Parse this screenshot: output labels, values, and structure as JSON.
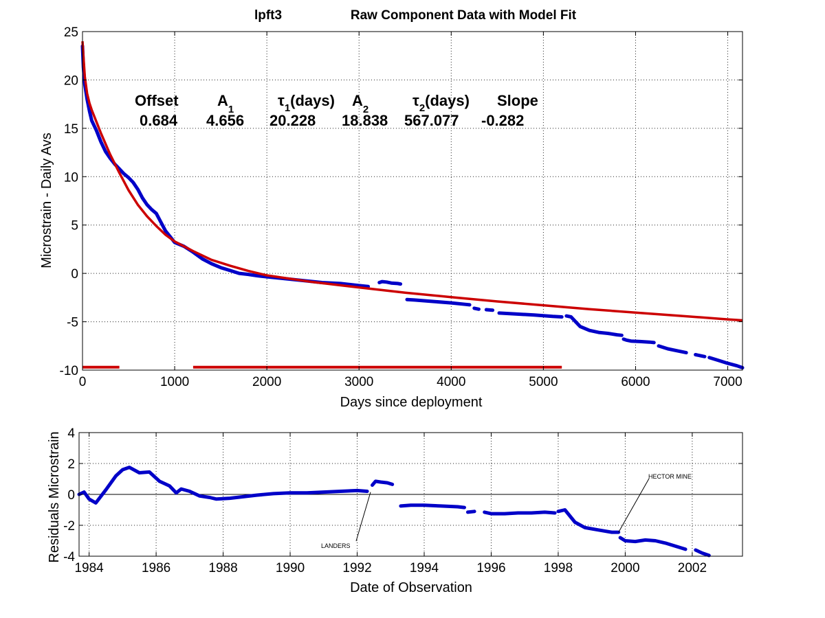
{
  "figure": {
    "title_left": "lpft3",
    "title_right": "Raw Component Data with Model Fit"
  },
  "top_axes": {
    "xlabel": "Days since deployment",
    "ylabel": "Microstrain - Daily Avs",
    "xlim": [
      0,
      7160
    ],
    "ylim": [
      -10,
      25
    ],
    "xticks": [
      0,
      1000,
      2000,
      3000,
      4000,
      5000,
      6000,
      7000
    ],
    "yticks": [
      -10,
      -5,
      0,
      5,
      10,
      15,
      20,
      25
    ],
    "grid": true
  },
  "fit_params": {
    "offset_label": "Offset",
    "a1_label": "A",
    "a1_sub": "1",
    "tau1_sym": "τ",
    "tau1_sub": "1",
    "tau1_unit": "(days)",
    "a2_label": "A",
    "a2_sub": "2",
    "tau2_sym": "τ",
    "tau2_sub": "2",
    "tau2_unit": "(days)",
    "slope_label": "Slope",
    "offset_value": "0.684",
    "a1_value": "4.656",
    "tau1_value": "20.228",
    "a2_value": "18.838",
    "tau2_value": "567.077",
    "slope_value": "-0.282"
  },
  "bottom_axes": {
    "xlabel": "Date of Observation",
    "ylabel": "Residuals Microstrain",
    "xlim": [
      1983.7,
      2003.5
    ],
    "ylim": [
      -4,
      4
    ],
    "xticks": [
      1984,
      1986,
      1988,
      1990,
      1992,
      1994,
      1996,
      1998,
      2000,
      2002
    ],
    "yticks": [
      -4,
      -2,
      0,
      2,
      4
    ],
    "grid": true,
    "zero_line": true
  },
  "annotations": [
    {
      "text": "LANDERS",
      "x": 1992.4,
      "y": 0.15
    },
    {
      "text": "HECTOR MINE",
      "x": 1999.8,
      "y": -2.45
    }
  ],
  "chart_data": [
    {
      "type": "line",
      "title": "Raw Component Data with Model Fit",
      "xlabel": "Days since deployment",
      "ylabel": "Microstrain - Daily Avs",
      "xlim": [
        0,
        7160
      ],
      "ylim": [
        -10,
        25
      ],
      "grid": true,
      "colors": {
        "data": "#0000c8",
        "fit": "#cc0000"
      },
      "series": [
        {
          "style": "points",
          "color": "#0000c8",
          "segments": [
            {
              "x": [
                0,
                10,
                25,
                50,
                75,
                100,
                150,
                200,
                250,
                300,
                350,
                400,
                450,
                500,
                550,
                600,
                650,
                700,
                750,
                800,
                850,
                900,
                950,
                1000,
                1100,
                1200,
                1300,
                1400,
                1500,
                1600,
                1700,
                1800,
                1900,
                2000,
                2200,
                2400,
                2600,
                2800,
                3000,
                3100
              ],
              "y": [
                23.5,
                21.3,
                19.5,
                18.0,
                16.8,
                15.8,
                14.8,
                13.6,
                12.6,
                11.9,
                11.3,
                10.8,
                10.3,
                9.9,
                9.4,
                8.7,
                7.8,
                7.1,
                6.6,
                6.2,
                5.3,
                4.4,
                3.8,
                3.2,
                2.8,
                2.2,
                1.5,
                1.0,
                0.6,
                0.3,
                0.0,
                -0.1,
                -0.25,
                -0.35,
                -0.55,
                -0.75,
                -0.95,
                -1.05,
                -1.25,
                -1.35
              ]
            },
            {
              "x": [
                3220,
                3250,
                3300,
                3350,
                3420,
                3450
              ],
              "y": [
                -0.95,
                -0.85,
                -0.9,
                -1.0,
                -1.05,
                -1.1
              ]
            },
            {
              "x": [
                3520,
                3600,
                3800,
                4000,
                4150,
                4200
              ],
              "y": [
                -2.7,
                -2.75,
                -2.9,
                -3.05,
                -3.2,
                -3.25
              ]
            },
            {
              "x": [
                4250,
                4300
              ],
              "y": [
                -3.6,
                -3.7
              ]
            },
            {
              "x": [
                4380,
                4450
              ],
              "y": [
                -3.75,
                -3.8
              ]
            },
            {
              "x": [
                4520,
                4700,
                4900,
                5100,
                5200
              ],
              "y": [
                -4.1,
                -4.2,
                -4.3,
                -4.45,
                -4.5
              ]
            },
            {
              "x": [
                5250,
                5300,
                5350,
                5400,
                5500,
                5600,
                5700,
                5800,
                5850
              ],
              "y": [
                -4.4,
                -4.5,
                -5.0,
                -5.5,
                -5.9,
                -6.1,
                -6.2,
                -6.35,
                -6.4
              ]
            },
            {
              "x": [
                5870,
                5900,
                5950,
                6050,
                6150,
                6200
              ],
              "y": [
                -6.8,
                -6.9,
                -7.0,
                -7.05,
                -7.1,
                -7.15
              ]
            },
            {
              "x": [
                6250,
                6350,
                6450,
                6550
              ],
              "y": [
                -7.5,
                -7.8,
                -8.0,
                -8.2
              ]
            },
            {
              "x": [
                6650,
                6750
              ],
              "y": [
                -8.4,
                -8.6
              ]
            },
            {
              "x": [
                6800,
                6900,
                7000,
                7100,
                7160
              ],
              "y": [
                -8.7,
                -9.0,
                -9.3,
                -9.55,
                -9.75
              ]
            }
          ]
        },
        {
          "style": "line",
          "color": "#cc0000",
          "x": [
            0,
            10,
            25,
            50,
            75,
            100,
            150,
            200,
            300,
            400,
            500,
            600,
            700,
            800,
            900,
            1000,
            1200,
            1400,
            1600,
            1800,
            2000,
            2500,
            3000,
            3500,
            4000,
            4500,
            5000,
            5500,
            6000,
            6500,
            7000,
            7160
          ],
          "y": [
            24.0,
            22.5,
            20.3,
            18.6,
            17.6,
            16.9,
            15.7,
            14.5,
            12.3,
            10.4,
            8.6,
            7.1,
            5.9,
            4.9,
            4.0,
            3.3,
            2.3,
            1.4,
            0.8,
            0.25,
            -0.2,
            -0.9,
            -1.45,
            -2.0,
            -2.45,
            -2.9,
            -3.3,
            -3.7,
            -4.05,
            -4.4,
            -4.75,
            -4.85
          ]
        },
        {
          "style": "bar",
          "color": "#cc0000",
          "x": [
            0,
            400
          ],
          "y": [
            -9.7,
            -9.7
          ]
        },
        {
          "style": "bar",
          "color": "#cc0000",
          "x": [
            1200,
            5200
          ],
          "y": [
            -9.7,
            -9.7
          ]
        }
      ]
    },
    {
      "type": "line",
      "xlabel": "Date of Observation",
      "ylabel": "Residuals Microstrain",
      "xlim": [
        1983.7,
        2003.5
      ],
      "ylim": [
        -4,
        4
      ],
      "grid": true,
      "series": [
        {
          "style": "points",
          "color": "#0000c8",
          "segments": [
            {
              "x": [
                1983.7,
                1983.85,
                1984.0,
                1984.2,
                1984.5,
                1984.8,
                1985.0,
                1985.2,
                1985.5,
                1985.8,
                1986.1,
                1986.4,
                1986.6,
                1986.75,
                1987.0,
                1987.3,
                1987.6,
                1987.8,
                1988.2,
                1988.6,
                1989.0,
                1989.5,
                1990.0,
                1990.5,
                1991.0,
                1991.5,
                1992.0,
                1992.3
              ],
              "y": [
                0.0,
                0.15,
                -0.3,
                -0.55,
                0.3,
                1.2,
                1.6,
                1.75,
                1.4,
                1.45,
                0.85,
                0.55,
                0.1,
                0.35,
                0.2,
                -0.1,
                -0.2,
                -0.3,
                -0.25,
                -0.15,
                -0.05,
                0.05,
                0.1,
                0.1,
                0.15,
                0.2,
                0.25,
                0.2
              ]
            },
            {
              "x": [
                1992.45,
                1992.55,
                1992.7,
                1992.9,
                1993.05
              ],
              "y": [
                0.6,
                0.85,
                0.8,
                0.75,
                0.65
              ]
            },
            {
              "x": [
                1993.3,
                1993.6,
                1994.0,
                1994.5,
                1995.0,
                1995.2
              ],
              "y": [
                -0.75,
                -0.7,
                -0.7,
                -0.75,
                -0.8,
                -0.85
              ]
            },
            {
              "x": [
                1995.3,
                1995.5
              ],
              "y": [
                -1.15,
                -1.1
              ]
            },
            {
              "x": [
                1995.8,
                1996.0,
                1996.4,
                1996.8,
                1997.2,
                1997.6,
                1997.9
              ],
              "y": [
                -1.15,
                -1.25,
                -1.25,
                -1.2,
                -1.2,
                -1.15,
                -1.2
              ]
            },
            {
              "x": [
                1998.0,
                1998.2,
                1998.5,
                1998.8,
                1999.2,
                1999.6,
                1999.8
              ],
              "y": [
                -1.1,
                -1.0,
                -1.8,
                -2.15,
                -2.3,
                -2.45,
                -2.45
              ]
            },
            {
              "x": [
                1999.85,
                2000.0,
                2000.3,
                2000.6,
                2000.9,
                2001.2,
                2001.5,
                2001.8
              ],
              "y": [
                -2.8,
                -3.0,
                -3.05,
                -2.95,
                -3.0,
                -3.15,
                -3.35,
                -3.55
              ]
            },
            {
              "x": [
                2002.1,
                2002.3,
                2002.5
              ],
              "y": [
                -3.6,
                -3.8,
                -3.95
              ]
            }
          ]
        }
      ]
    }
  ]
}
